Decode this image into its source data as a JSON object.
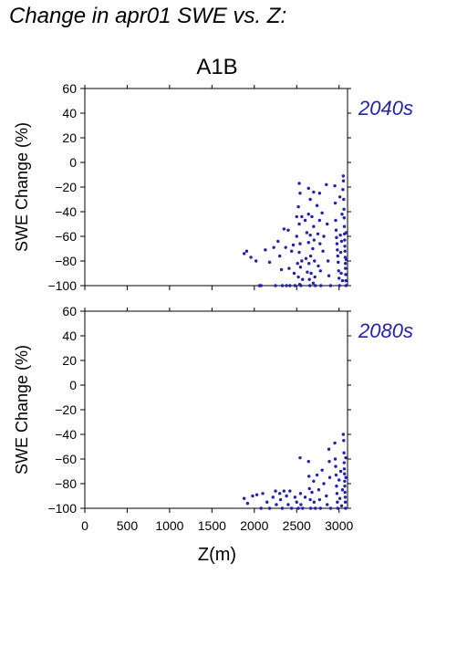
{
  "title": "Change in apr01 SWE vs. Z:",
  "scenario": "A1B",
  "x_axis_label": "Z(m)",
  "colors": {
    "points": "#2222aa",
    "period_label": "#2222aa",
    "axis": "#000000"
  },
  "chart_data": [
    {
      "type": "scatter",
      "period_label": "2040s",
      "ylabel": "SWE Change (%)",
      "xlabel": "",
      "xlim": [
        0,
        3100
      ],
      "ylim": [
        -100,
        60
      ],
      "x_ticks": [
        0,
        500,
        1000,
        1500,
        2000,
        2500,
        3000
      ],
      "y_ticks": [
        -100,
        -80,
        -60,
        -40,
        -20,
        0,
        20,
        40,
        60
      ],
      "show_x_tick_labels": false,
      "grid": false,
      "points": [
        [
          1880,
          -74
        ],
        [
          1910,
          -72
        ],
        [
          1960,
          -77
        ],
        [
          2020,
          -80
        ],
        [
          2060,
          -100
        ],
        [
          2080,
          -100
        ],
        [
          2130,
          -71
        ],
        [
          2180,
          -81
        ],
        [
          2230,
          -69
        ],
        [
          2250,
          -100
        ],
        [
          2280,
          -64
        ],
        [
          2300,
          -76
        ],
        [
          2320,
          -87
        ],
        [
          2330,
          -100
        ],
        [
          2350,
          -54
        ],
        [
          2370,
          -69
        ],
        [
          2380,
          -100
        ],
        [
          2400,
          -55
        ],
        [
          2410,
          -86
        ],
        [
          2420,
          -100
        ],
        [
          2440,
          -72
        ],
        [
          2460,
          -67
        ],
        [
          2470,
          -90
        ],
        [
          2480,
          -100
        ],
        [
          2500,
          -44
        ],
        [
          2500,
          -60
        ],
        [
          2510,
          -82
        ],
        [
          2520,
          -36
        ],
        [
          2520,
          -93
        ],
        [
          2530,
          -17
        ],
        [
          2530,
          -50
        ],
        [
          2530,
          -73
        ],
        [
          2535,
          -99
        ],
        [
          2540,
          -25
        ],
        [
          2540,
          -66
        ],
        [
          2545,
          -85
        ],
        [
          2550,
          -100
        ],
        [
          2560,
          -44
        ],
        [
          2560,
          -80
        ],
        [
          2570,
          -95
        ],
        [
          2600,
          -47
        ],
        [
          2610,
          -78
        ],
        [
          2620,
          -57
        ],
        [
          2625,
          -89
        ],
        [
          2640,
          -21
        ],
        [
          2640,
          -42
        ],
        [
          2640,
          -65
        ],
        [
          2645,
          -82
        ],
        [
          2650,
          -95
        ],
        [
          2655,
          -100
        ],
        [
          2660,
          -30
        ],
        [
          2660,
          -59
        ],
        [
          2665,
          -76
        ],
        [
          2670,
          -90
        ],
        [
          2680,
          -44
        ],
        [
          2690,
          -70
        ],
        [
          2695,
          -98
        ],
        [
          2700,
          -24
        ],
        [
          2700,
          -52
        ],
        [
          2705,
          -63
        ],
        [
          2710,
          -80
        ],
        [
          2715,
          -93
        ],
        [
          2720,
          -100
        ],
        [
          2740,
          -35
        ],
        [
          2750,
          -58
        ],
        [
          2755,
          -84
        ],
        [
          2770,
          -25
        ],
        [
          2770,
          -47
        ],
        [
          2775,
          -66
        ],
        [
          2780,
          -88
        ],
        [
          2785,
          -100
        ],
        [
          2800,
          -41
        ],
        [
          2810,
          -72
        ],
        [
          2820,
          -60
        ],
        [
          2850,
          -18
        ],
        [
          2860,
          -50
        ],
        [
          2870,
          -80
        ],
        [
          2880,
          -92
        ],
        [
          2900,
          -100
        ],
        [
          2950,
          -19
        ],
        [
          2955,
          -33
        ],
        [
          2960,
          -47
        ],
        [
          2965,
          -55
        ],
        [
          2970,
          -61
        ],
        [
          2975,
          -66
        ],
        [
          2980,
          -71
        ],
        [
          2985,
          -76
        ],
        [
          2990,
          -81
        ],
        [
          2995,
          -88
        ],
        [
          3000,
          -94
        ],
        [
          3005,
          -100
        ],
        [
          3010,
          -28
        ],
        [
          3015,
          -59
        ],
        [
          3020,
          -73
        ],
        [
          3025,
          -90
        ],
        [
          3030,
          -64
        ],
        [
          3035,
          -42
        ],
        [
          3040,
          -96
        ],
        [
          3045,
          -22
        ],
        [
          3050,
          -11
        ],
        [
          3052,
          -15
        ],
        [
          3055,
          -30
        ],
        [
          3058,
          -38
        ],
        [
          3060,
          -45
        ],
        [
          3062,
          -52
        ],
        [
          3064,
          -58
        ],
        [
          3066,
          -63
        ],
        [
          3068,
          -68
        ],
        [
          3070,
          -72
        ],
        [
          3072,
          -77
        ],
        [
          3074,
          -82
        ],
        [
          3076,
          -86
        ],
        [
          3078,
          -91
        ],
        [
          3080,
          -96
        ],
        [
          3082,
          -100
        ],
        [
          3084,
          -57
        ],
        [
          3086,
          -79
        ]
      ]
    },
    {
      "type": "scatter",
      "period_label": "2080s",
      "ylabel": "SWE Change (%)",
      "xlabel": "Z(m)",
      "xlim": [
        0,
        3100
      ],
      "ylim": [
        -100,
        60
      ],
      "x_ticks": [
        0,
        500,
        1000,
        1500,
        2000,
        2500,
        3000
      ],
      "x_tick_labels": [
        "0",
        "500",
        "1000",
        "1500",
        "2000",
        "2500",
        "3000"
      ],
      "y_ticks": [
        -100,
        -80,
        -60,
        -40,
        -20,
        0,
        20,
        40,
        60
      ],
      "show_x_tick_labels": true,
      "grid": false,
      "points": [
        [
          1880,
          -92
        ],
        [
          1920,
          -96
        ],
        [
          1980,
          -90
        ],
        [
          2030,
          -89
        ],
        [
          2080,
          -100
        ],
        [
          2100,
          -88
        ],
        [
          2150,
          -95
        ],
        [
          2180,
          -100
        ],
        [
          2220,
          -91
        ],
        [
          2250,
          -86
        ],
        [
          2260,
          -97
        ],
        [
          2300,
          -88
        ],
        [
          2310,
          -93
        ],
        [
          2330,
          -100
        ],
        [
          2350,
          -86
        ],
        [
          2380,
          -90
        ],
        [
          2400,
          -97
        ],
        [
          2420,
          -86
        ],
        [
          2440,
          -100
        ],
        [
          2480,
          -91
        ],
        [
          2500,
          -95
        ],
        [
          2520,
          -100
        ],
        [
          2540,
          -59
        ],
        [
          2545,
          -88
        ],
        [
          2550,
          -97
        ],
        [
          2570,
          -100
        ],
        [
          2600,
          -91
        ],
        [
          2640,
          -62
        ],
        [
          2645,
          -74
        ],
        [
          2650,
          -84
        ],
        [
          2660,
          -93
        ],
        [
          2665,
          -100
        ],
        [
          2680,
          -87
        ],
        [
          2700,
          -78
        ],
        [
          2705,
          -95
        ],
        [
          2720,
          -100
        ],
        [
          2740,
          -73
        ],
        [
          2760,
          -85
        ],
        [
          2770,
          -93
        ],
        [
          2780,
          -100
        ],
        [
          2800,
          -69
        ],
        [
          2820,
          -80
        ],
        [
          2850,
          -90
        ],
        [
          2860,
          -97
        ],
        [
          2880,
          -52
        ],
        [
          2885,
          -62
        ],
        [
          2890,
          -75
        ],
        [
          2900,
          -100
        ],
        [
          2950,
          -47
        ],
        [
          2955,
          -60
        ],
        [
          2960,
          -66
        ],
        [
          2965,
          -73
        ],
        [
          2970,
          -82
        ],
        [
          2975,
          -88
        ],
        [
          2980,
          -95
        ],
        [
          2985,
          -100
        ],
        [
          3000,
          -77
        ],
        [
          3010,
          -92
        ],
        [
          3020,
          -70
        ],
        [
          3030,
          -98
        ],
        [
          3040,
          -85
        ],
        [
          3050,
          -40
        ],
        [
          3055,
          -45
        ],
        [
          3058,
          -55
        ],
        [
          3060,
          -63
        ],
        [
          3062,
          -68
        ],
        [
          3064,
          -72
        ],
        [
          3066,
          -78
        ],
        [
          3068,
          -82
        ],
        [
          3070,
          -87
        ],
        [
          3072,
          -91
        ],
        [
          3074,
          -95
        ],
        [
          3076,
          -100
        ],
        [
          3078,
          -59
        ],
        [
          3080,
          -75
        ]
      ]
    }
  ]
}
